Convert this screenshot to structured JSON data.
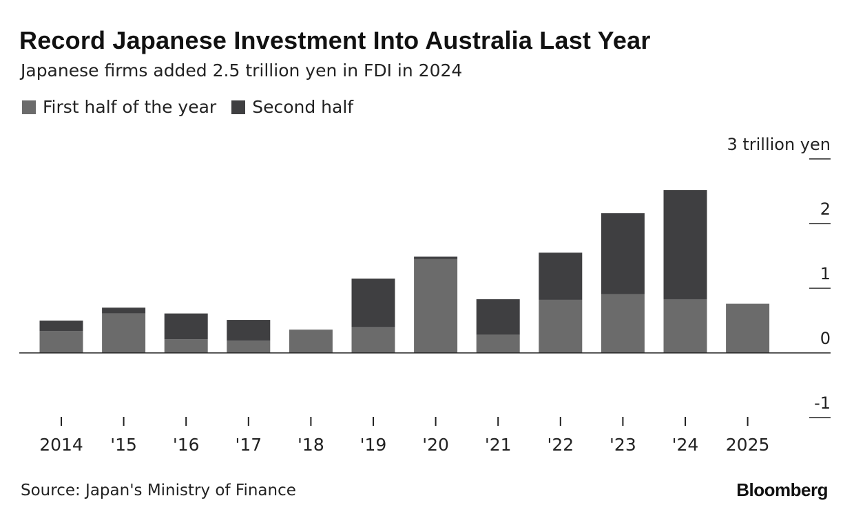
{
  "header": {
    "title": "Record Japanese Investment Into Australia Last Year",
    "subtitle": "Japanese firms added 2.5 trillion yen in FDI in 2024"
  },
  "legend": {
    "items": [
      {
        "label": "First half of the year",
        "color": "#6b6b6b"
      },
      {
        "label": "Second half",
        "color": "#3f3f41"
      }
    ]
  },
  "footer": {
    "source": "Source: Japan's Ministry of Finance",
    "brand": "Bloomberg"
  },
  "chart_data": {
    "type": "bar",
    "stacked": true,
    "categories": [
      "2014",
      "'15",
      "'16",
      "'17",
      "'18",
      "'19",
      "'20",
      "'21",
      "'22",
      "'23",
      "'24",
      "2025"
    ],
    "series": [
      {
        "name": "First half of the year",
        "color": "#6b6b6b",
        "values": [
          0.34,
          0.61,
          0.21,
          0.19,
          0.36,
          0.4,
          1.45,
          0.28,
          0.82,
          0.91,
          0.83,
          0.76
        ]
      },
      {
        "name": "Second half",
        "color": "#3f3f41",
        "values": [
          0.16,
          0.09,
          0.4,
          0.32,
          0.0,
          0.75,
          0.04,
          0.55,
          0.73,
          1.25,
          1.69,
          0.0
        ]
      }
    ],
    "ylim": [
      -1,
      3
    ],
    "yticks": [
      {
        "value": 3,
        "label": "3 trillion yen"
      },
      {
        "value": 2,
        "label": "2"
      },
      {
        "value": 1,
        "label": "1"
      },
      {
        "value": 0,
        "label": "0"
      },
      {
        "value": -1,
        "label": "-1"
      }
    ],
    "y_axis_side": "right",
    "grid": false,
    "legend_position": "top-left"
  }
}
